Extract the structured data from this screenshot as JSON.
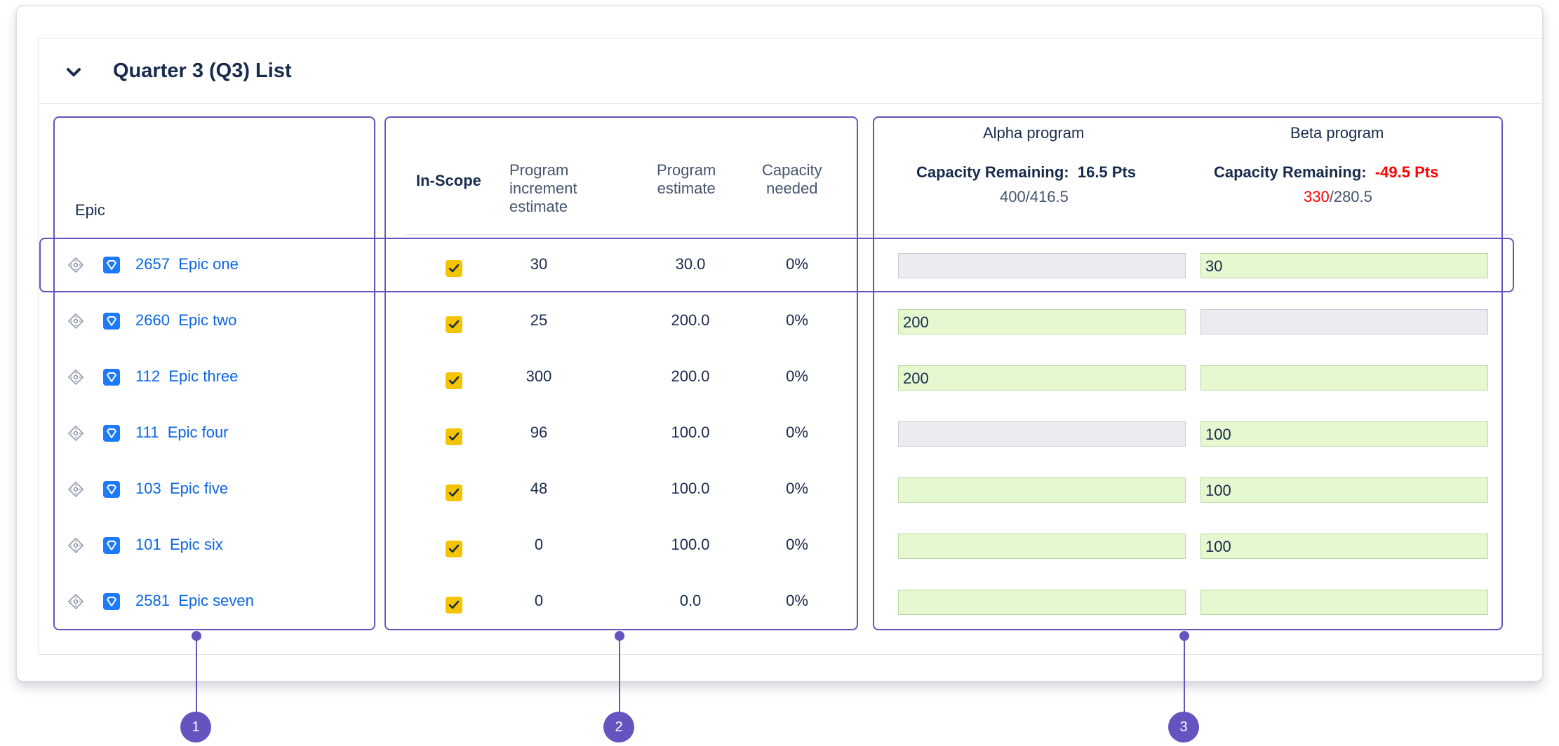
{
  "list": {
    "title": "Quarter 3 (Q3) List"
  },
  "columns": {
    "epic": "Epic",
    "in_scope": "In-Scope",
    "pi_estimate": [
      "Program",
      "increment",
      "estimate"
    ],
    "program_estimate": [
      "Program",
      "estimate"
    ],
    "capacity_needed": [
      "Capacity",
      "needed"
    ]
  },
  "programs": [
    {
      "name": "Alpha program",
      "capacity_label": "Capacity Remaining:",
      "capacity_value": "16.5 Pts",
      "capacity_negative": false,
      "used": "400",
      "total": "/416.5",
      "used_over": false
    },
    {
      "name": "Beta program",
      "capacity_label": "Capacity Remaining:",
      "capacity_value": "-49.5 Pts",
      "capacity_negative": true,
      "used": "330",
      "total": "/280.5",
      "used_over": true
    }
  ],
  "rows": [
    {
      "id": "2657",
      "name": "Epic one",
      "in_scope": true,
      "pi_estimate": "30",
      "program_estimate": "30.0",
      "capacity_needed": "0%",
      "alpha": "",
      "beta": "30",
      "alpha_active": false,
      "beta_active": true
    },
    {
      "id": "2660",
      "name": "Epic two",
      "in_scope": true,
      "pi_estimate": "25",
      "program_estimate": "200.0",
      "capacity_needed": "0%",
      "alpha": "200",
      "beta": "",
      "alpha_active": true,
      "beta_active": false
    },
    {
      "id": "112",
      "name": "Epic three",
      "in_scope": true,
      "pi_estimate": "300",
      "program_estimate": "200.0",
      "capacity_needed": "0%",
      "alpha": "200",
      "beta": "",
      "alpha_active": true,
      "beta_active": true
    },
    {
      "id": "111",
      "name": "Epic four",
      "in_scope": true,
      "pi_estimate": "96",
      "program_estimate": "100.0",
      "capacity_needed": "0%",
      "alpha": "",
      "beta": "100",
      "alpha_active": false,
      "beta_active": true
    },
    {
      "id": "103",
      "name": "Epic five",
      "in_scope": true,
      "pi_estimate": "48",
      "program_estimate": "100.0",
      "capacity_needed": "0%",
      "alpha": "",
      "beta": "100",
      "alpha_active": true,
      "beta_active": true
    },
    {
      "id": "101",
      "name": "Epic six",
      "in_scope": true,
      "pi_estimate": "0",
      "program_estimate": "100.0",
      "capacity_needed": "0%",
      "alpha": "",
      "beta": "100",
      "alpha_active": true,
      "beta_active": true
    },
    {
      "id": "2581",
      "name": "Epic seven",
      "in_scope": true,
      "pi_estimate": "0",
      "program_estimate": "0.0",
      "capacity_needed": "0%",
      "alpha": "",
      "beta": "",
      "alpha_active": true,
      "beta_active": true
    }
  ],
  "callouts": [
    "1",
    "2",
    "3"
  ],
  "icons": {
    "collapse": "chevron-down-icon",
    "drag": "drag-handle-icon",
    "epic": "epic-icon",
    "check": "check-icon"
  },
  "colors": {
    "accent": "#6554c0",
    "link": "#0c66e4",
    "checkbox": "#f5c400",
    "negative": "#ff0000",
    "input_active": "#e6f8cf",
    "input_inactive": "#ebecf0"
  }
}
